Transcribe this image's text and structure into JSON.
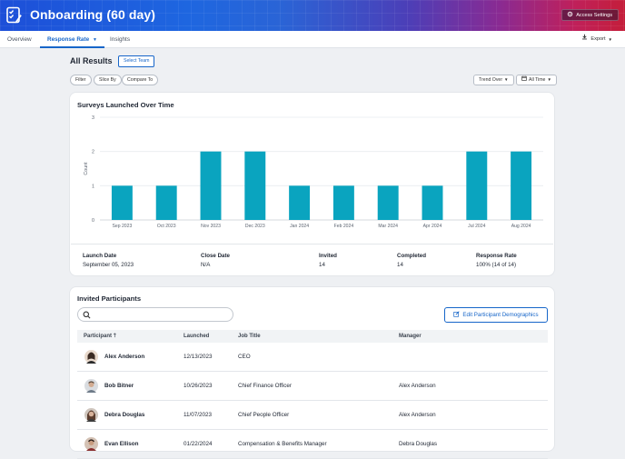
{
  "header": {
    "title": "Onboarding (60 day)",
    "access_settings": "Access Settings",
    "brand_icon": "survey-checklist-icon"
  },
  "nav": {
    "tabs": [
      "Overview",
      "Response Rate",
      "Insights"
    ],
    "active_tab": "Response Rate",
    "export": "Export"
  },
  "toolbar": {
    "heading": "All Results",
    "select_team": "Select Team",
    "filters": [
      "Filter",
      "Slice By",
      "Compare To"
    ],
    "trend": "Trend Over",
    "range": "All Time"
  },
  "chart_card": {
    "title": "Surveys Launched Over Time"
  },
  "chart_data": {
    "type": "bar",
    "title": "Surveys Launched Over Time",
    "xlabel": "",
    "ylabel": "Count",
    "categories": [
      "Sep 2023",
      "Oct 2023",
      "Nov 2023",
      "Dec 2023",
      "Jan 2024",
      "Feb 2024",
      "Mar 2024",
      "Apr 2024",
      "Jul 2024",
      "Aug 2024"
    ],
    "values": [
      1,
      1,
      2,
      2,
      1,
      1,
      1,
      1,
      2,
      2
    ],
    "ylim": [
      0,
      3
    ],
    "yticks": [
      "0",
      "1",
      "2",
      "3"
    ],
    "color": "#0aa4bf",
    "grid": true
  },
  "stats": [
    {
      "label": "Launch Date",
      "value": "September 05, 2023"
    },
    {
      "label": "Close Date",
      "value": "N/A"
    },
    {
      "label": "Invited",
      "value": "14"
    },
    {
      "label": "Completed",
      "value": "14"
    },
    {
      "label": "Response Rate",
      "value": "100% (14 of 14)"
    }
  ],
  "participants": {
    "title": "Invited Participants",
    "edit_button": "Edit Participant Demographics",
    "columns": [
      "Participant",
      "Launched",
      "Job Title",
      "Manager"
    ],
    "rows": [
      {
        "name": "Alex Anderson",
        "launched": "12/13/2023",
        "job": "CEO",
        "manager": ""
      },
      {
        "name": "Bob Bitner",
        "launched": "10/26/2023",
        "job": "Chief Finance Officer",
        "manager": "Alex Anderson"
      },
      {
        "name": "Debra Douglas",
        "launched": "11/07/2023",
        "job": "Chief People Officer",
        "manager": "Alex Anderson"
      },
      {
        "name": "Evan Ellison",
        "launched": "01/22/2024",
        "job": "Compensation & Benefits Manager",
        "manager": "Debra Douglas"
      }
    ]
  },
  "colors": {
    "accent": "#1766c9",
    "bar": "#0aa4bf"
  }
}
